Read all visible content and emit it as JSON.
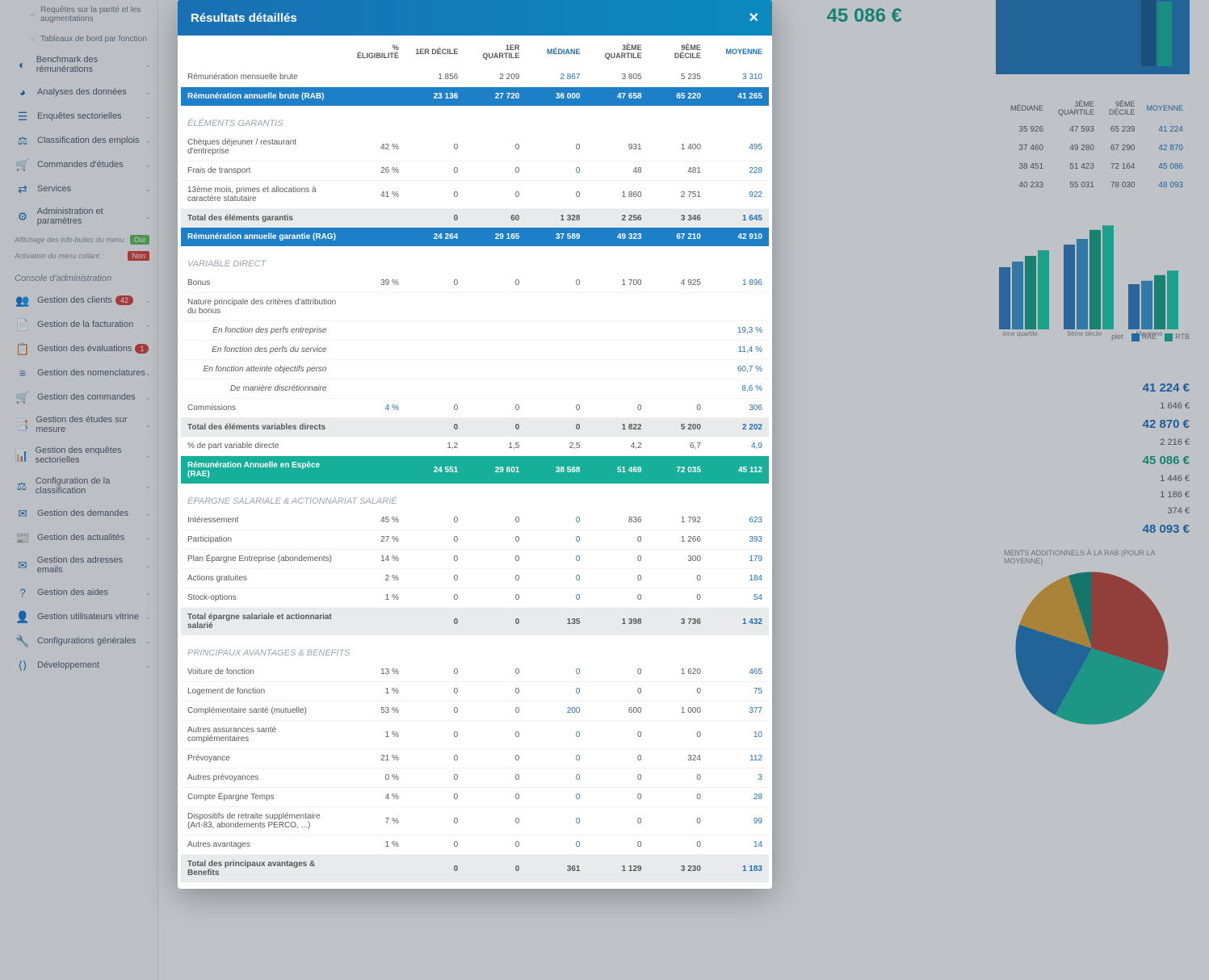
{
  "sidebar": {
    "sub1": "Requêtes sur la parité et les augmentations",
    "sub2": "Tableaux de bord par fonction",
    "items": [
      {
        "icon": "◐",
        "label": "Benchmark des rémunérations"
      },
      {
        "icon": "◕",
        "label": "Analyses des données"
      },
      {
        "icon": "☰",
        "label": "Enquêtes sectorielles"
      },
      {
        "icon": "⚖",
        "label": "Classification des emplois"
      },
      {
        "icon": "🛒",
        "label": "Commandes d'études"
      },
      {
        "icon": "⇄",
        "label": "Services"
      },
      {
        "icon": "⚙",
        "label": "Administration et paramètres"
      }
    ],
    "toggle1_label": "Affichage des info-bulles du menu :",
    "toggle1_val": "Oui",
    "toggle2_label": "Activation du menu collant :",
    "toggle2_val": "Non",
    "console_header": "Console d'administration",
    "admin": [
      {
        "icon": "👥",
        "label": "Gestion des clients",
        "badge": "42"
      },
      {
        "icon": "📄",
        "label": "Gestion de la facturation"
      },
      {
        "icon": "📋",
        "label": "Gestion des évaluations",
        "badge": "1"
      },
      {
        "icon": "≡",
        "label": "Gestion des nomenclatures"
      },
      {
        "icon": "🛒",
        "label": "Gestion des commandes"
      },
      {
        "icon": "📑",
        "label": "Gestion des études sur mesure"
      },
      {
        "icon": "📊",
        "label": "Gestion des enquêtes sectorielles"
      },
      {
        "icon": "⚖",
        "label": "Configuration de la classification"
      },
      {
        "icon": "✉",
        "label": "Gestion des demandes"
      },
      {
        "icon": "📰",
        "label": "Gestion des actualités"
      },
      {
        "icon": "✉",
        "label": "Gestion des adresses emails"
      },
      {
        "icon": "?",
        "label": "Gestion des aides"
      },
      {
        "icon": "👤",
        "label": "Gestion utilisateurs vitrine"
      },
      {
        "icon": "🔧",
        "label": "Configurations générales"
      },
      {
        "icon": "⟨⟩",
        "label": "Développement"
      }
    ]
  },
  "background": {
    "big_value": "45 086 €",
    "mini_table": {
      "headers": [
        "MÉDIANE",
        "3ÈME QUARTILE",
        "9ÈME DÉCILE",
        "MOYENNE"
      ],
      "rows": [
        [
          "35 926",
          "47 593",
          "65 239",
          "41 224"
        ],
        [
          "37 460",
          "49 280",
          "67 290",
          "42 870"
        ],
        [
          "38 451",
          "51 423",
          "72 164",
          "45 086"
        ],
        [
          "40 233",
          "55 031",
          "78 030",
          "48 093"
        ]
      ]
    },
    "chart": {
      "groups": [
        "ème quartile",
        "9ème décile",
        "Moyenne"
      ],
      "series": [
        {
          "name": "RAE",
          "color": "#1e7fc9"
        },
        {
          "name": "RTB",
          "color": "#16b09a"
        }
      ],
      "legend_extra": "plet",
      "values_norm": [
        [
          0.55,
          0.6,
          0.65,
          0.7
        ],
        [
          0.75,
          0.8,
          0.88,
          0.92
        ],
        [
          0.4,
          0.43,
          0.48,
          0.52
        ]
      ],
      "colors": [
        "#2e7bbd",
        "#3a95cf",
        "#16a085",
        "#1dc9a9"
      ]
    },
    "side_amounts": [
      {
        "v": "41 224 €",
        "cls": "big-blue"
      },
      {
        "v": "1 646 €",
        "cls": ""
      },
      {
        "v": "42 870 €",
        "cls": "big-blue"
      },
      {
        "v": "2 216 €",
        "cls": ""
      },
      {
        "v": "45 086 €",
        "cls": "big-green"
      },
      {
        "v": "1 446 €",
        "cls": ""
      },
      {
        "v": "1 186 €",
        "cls": ""
      },
      {
        "v": "374 €",
        "cls": ""
      },
      {
        "v": "48 093 €",
        "cls": "big-blue"
      }
    ],
    "caption": "MENTS ADDITIONNELS À LA RAB (POUR LA MOYENNE)",
    "pie": {
      "slices": [
        {
          "color": "#b8473f",
          "pct": 30
        },
        {
          "color": "#1dbba0",
          "pct": 28
        },
        {
          "color": "#2378b8",
          "pct": 22
        },
        {
          "color": "#d9a03a",
          "pct": 15
        },
        {
          "color": "#0f8f7e",
          "pct": 5
        }
      ]
    }
  },
  "modal": {
    "title": "Résultats détaillés",
    "columns": [
      "",
      "% ÉLIGIBILITÉ",
      "1ER DÉCILE",
      "1ER QUARTILE",
      "MÉDIANE",
      "3ÈME QUARTILE",
      "9ÈME DÉCILE",
      "MOYENNE"
    ],
    "sections": [
      {
        "header": null,
        "rows": [
          {
            "label": "Rémunération mensuelle brute",
            "vals": [
              "",
              "1 856",
              "2 209",
              "2 867",
              "3 805",
              "5 235",
              "3 310"
            ],
            "blue_idx": [
              3,
              6
            ]
          },
          {
            "label": "Rémunération annuelle brute (RAB)",
            "vals": [
              "",
              "23 136",
              "27 720",
              "36 000",
              "47 658",
              "65 220",
              "41 265"
            ],
            "cls": "row-highlight-blue"
          }
        ]
      },
      {
        "header": "ÉLÉMENTS GARANTIS",
        "rows": [
          {
            "label": "Chèques déjeuner / restaurant d'entreprise",
            "vals": [
              "42 %",
              "0",
              "0",
              "0",
              "931",
              "1 400",
              "495"
            ],
            "blue_idx": [
              6
            ]
          },
          {
            "label": "Frais de transport",
            "vals": [
              "26 %",
              "0",
              "0",
              "0",
              "48",
              "481",
              "228"
            ],
            "blue_idx": [
              3,
              6
            ]
          },
          {
            "label": "13ème mois, primes et allocations à caractère statutaire",
            "vals": [
              "41 %",
              "0",
              "0",
              "0",
              "1 860",
              "2 751",
              "922"
            ],
            "blue_idx": [
              6
            ]
          },
          {
            "label": "Total des éléments garantis",
            "vals": [
              "",
              "0",
              "60",
              "1 328",
              "2 256",
              "3 346",
              "1 645"
            ],
            "cls": "row-total",
            "blue_idx": [
              6
            ]
          },
          {
            "label": "Rémunération annuelle garantie (RAG)",
            "vals": [
              "",
              "24 264",
              "29 165",
              "37 589",
              "49 323",
              "67 210",
              "42 910"
            ],
            "cls": "row-highlight-blue"
          }
        ]
      },
      {
        "header": "VARIABLE DIRECT",
        "rows": [
          {
            "label": "Bonus",
            "vals": [
              "39 %",
              "0",
              "0",
              "0",
              "1 700",
              "4 925",
              "1 896"
            ],
            "blue_idx": [
              6
            ]
          },
          {
            "label": "Nature principale des critères d'attribution du bonus",
            "vals": [
              "",
              "",
              "",
              "",
              "",
              "",
              ""
            ]
          },
          {
            "label": "En fonction des perfs entreprise",
            "vals": [
              "",
              "",
              "",
              "",
              "",
              "",
              "19,3 %"
            ],
            "cls": "italic-row",
            "blue_idx": [
              6
            ]
          },
          {
            "label": "En fonction des perfs du service",
            "vals": [
              "",
              "",
              "",
              "",
              "",
              "",
              "11,4 %"
            ],
            "cls": "italic-row",
            "blue_idx": [
              6
            ]
          },
          {
            "label": "En fonction atteinte objectifs perso",
            "vals": [
              "",
              "",
              "",
              "",
              "",
              "",
              "60,7 %"
            ],
            "cls": "italic-row",
            "blue_idx": [
              6
            ]
          },
          {
            "label": "De manière discrétionnaire",
            "vals": [
              "",
              "",
              "",
              "",
              "",
              "",
              "8,6 %"
            ],
            "cls": "italic-row",
            "blue_idx": [
              6
            ]
          },
          {
            "label": "Commissions",
            "vals": [
              "4 %",
              "0",
              "0",
              "0",
              "0",
              "0",
              "306"
            ],
            "blue_idx": [
              0,
              6
            ]
          },
          {
            "label": "Total des éléments variables directs",
            "vals": [
              "",
              "0",
              "0",
              "0",
              "1 822",
              "5 200",
              "2 202"
            ],
            "cls": "row-total",
            "blue_idx": [
              6
            ]
          },
          {
            "label": "% de part variable directe",
            "vals": [
              "",
              "1,2",
              "1,5",
              "2,5",
              "4,2",
              "6,7",
              "4,9"
            ],
            "blue_idx": [
              6
            ]
          },
          {
            "label": "Rémunération Annuelle en Espèce (RAE)",
            "vals": [
              "",
              "24 551",
              "29 601",
              "38 568",
              "51 469",
              "72 035",
              "45 112"
            ],
            "cls": "row-highlight-green"
          }
        ]
      },
      {
        "header": "ÉPARGNE SALARIALE & ACTIONNARIAT SALARIÉ",
        "rows": [
          {
            "label": "Intéressement",
            "vals": [
              "45 %",
              "0",
              "0",
              "0",
              "836",
              "1 792",
              "623"
            ],
            "blue_idx": [
              3,
              6
            ]
          },
          {
            "label": "Participation",
            "vals": [
              "27 %",
              "0",
              "0",
              "0",
              "0",
              "1 266",
              "393"
            ],
            "blue_idx": [
              3,
              6
            ]
          },
          {
            "label": "Plan Épargne Entreprise (abondements)",
            "vals": [
              "14 %",
              "0",
              "0",
              "0",
              "0",
              "300",
              "179"
            ],
            "blue_idx": [
              3,
              6
            ]
          },
          {
            "label": "Actions gratuites",
            "vals": [
              "2 %",
              "0",
              "0",
              "0",
              "0",
              "0",
              "184"
            ],
            "blue_idx": [
              3,
              6
            ]
          },
          {
            "label": "Stock-options",
            "vals": [
              "1 %",
              "0",
              "0",
              "0",
              "0",
              "0",
              "54"
            ],
            "blue_idx": [
              3,
              6
            ]
          },
          {
            "label": "Total épargne salariale et actionnariat salarié",
            "vals": [
              "",
              "0",
              "0",
              "135",
              "1 398",
              "3 736",
              "1 432"
            ],
            "cls": "row-total",
            "blue_idx": [
              6
            ]
          }
        ]
      },
      {
        "header": "PRINCIPAUX AVANTAGES & BENEFITS",
        "rows": [
          {
            "label": "Voiture de fonction",
            "vals": [
              "13 %",
              "0",
              "0",
              "0",
              "0",
              "1 620",
              "465"
            ],
            "blue_idx": [
              3,
              6
            ]
          },
          {
            "label": "Logement de fonction",
            "vals": [
              "1 %",
              "0",
              "0",
              "0",
              "0",
              "0",
              "75"
            ],
            "blue_idx": [
              3,
              6
            ]
          },
          {
            "label": "Complémentaire santé (mutuelle)",
            "vals": [
              "53 %",
              "0",
              "0",
              "200",
              "600",
              "1 000",
              "377"
            ],
            "blue_idx": [
              3,
              6
            ]
          },
          {
            "label": "Autres assurances santé complémentaires",
            "vals": [
              "1 %",
              "0",
              "0",
              "0",
              "0",
              "0",
              "10"
            ],
            "blue_idx": [
              3,
              6
            ]
          },
          {
            "label": "Prévoyance",
            "vals": [
              "21 %",
              "0",
              "0",
              "0",
              "0",
              "324",
              "112"
            ],
            "blue_idx": [
              3,
              6
            ]
          },
          {
            "label": "Autres prévoyances",
            "vals": [
              "0 %",
              "0",
              "0",
              "0",
              "0",
              "0",
              "3"
            ],
            "blue_idx": [
              3,
              6
            ]
          },
          {
            "label": "Compte Épargne Temps",
            "vals": [
              "4 %",
              "0",
              "0",
              "0",
              "0",
              "0",
              "28"
            ],
            "blue_idx": [
              3,
              6
            ]
          },
          {
            "label": "Dispositifs de retraite supplémentaire (Art-83, abondements PERCO, ...)",
            "vals": [
              "7 %",
              "0",
              "0",
              "0",
              "0",
              "0",
              "99"
            ],
            "blue_idx": [
              3,
              6
            ]
          },
          {
            "label": "Autres avantages",
            "vals": [
              "1 %",
              "0",
              "0",
              "0",
              "0",
              "0",
              "14"
            ],
            "blue_idx": [
              3,
              6
            ]
          },
          {
            "label": "Total des principaux avantages & Benefits",
            "vals": [
              "",
              "0",
              "0",
              "361",
              "1 129",
              "3 230",
              "1 183"
            ],
            "cls": "row-total",
            "blue_idx": [
              6
            ]
          }
        ]
      }
    ]
  }
}
